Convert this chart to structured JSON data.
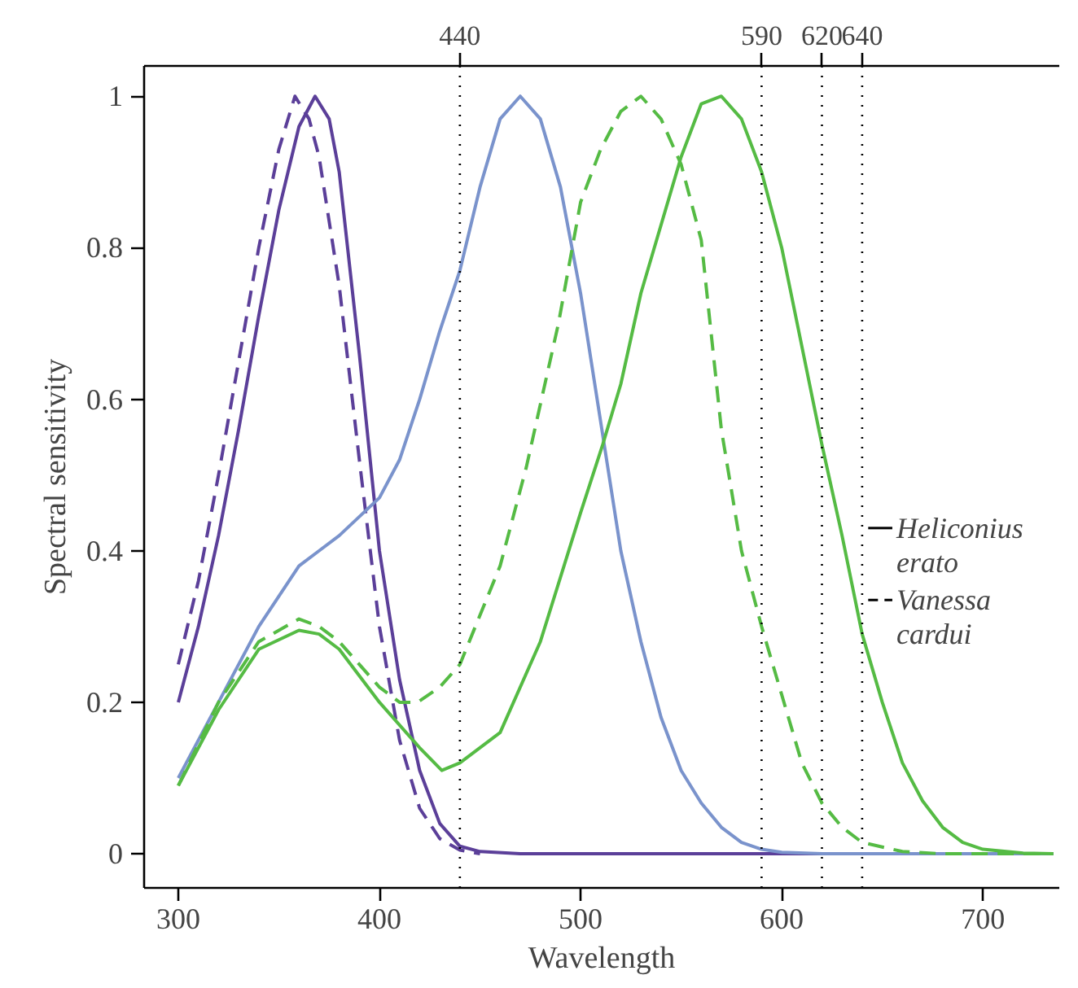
{
  "chart_data": {
    "type": "line",
    "xlabel": "Wavelength",
    "ylabel": "Spectral sensitivity",
    "xlim": [
      283,
      738
    ],
    "xticks": [
      300,
      400,
      500,
      600,
      700
    ],
    "ylim": [
      -0.045,
      1.04
    ],
    "yticks": [
      0,
      {
        "value": 0.2,
        "label": "0.2"
      },
      {
        "value": 0.4,
        "label": "0.4"
      },
      {
        "value": 0.6,
        "label": "0.6"
      },
      {
        "value": 0.8,
        "label": "0.8"
      },
      1
    ],
    "x2lim": [
      283,
      738
    ],
    "x2ticks": [
      440,
      590,
      620,
      640
    ],
    "ref_lines": [
      {
        "axis": "x",
        "value": 440,
        "line_style": "dotted"
      },
      {
        "axis": "x",
        "value": 590,
        "line_style": "dotted"
      },
      {
        "axis": "x",
        "value": 620,
        "line_style": "dotted"
      },
      {
        "axis": "x",
        "value": 640,
        "line_style": "dotted"
      }
    ],
    "grid": false,
    "marker": "none",
    "annotations": [
      "Heliconius erato",
      "Vanessa cardui"
    ],
    "series": [
      {
        "color": "#5b3f99",
        "line_style": "solid",
        "x": [
          300,
          310,
          320,
          330,
          340,
          350,
          360,
          368,
          375,
          380,
          390,
          400,
          410,
          420,
          430,
          440,
          450,
          470,
          735
        ],
        "values": [
          0.2,
          0.3,
          0.42,
          0.56,
          0.71,
          0.85,
          0.96,
          1.0,
          0.97,
          0.9,
          0.66,
          0.4,
          0.23,
          0.11,
          0.04,
          0.01,
          0.003,
          0,
          0
        ]
      },
      {
        "color": "#5b3f99",
        "line_style": "dashed",
        "x": [
          300,
          310,
          320,
          330,
          340,
          350,
          358,
          365,
          370,
          380,
          390,
          400,
          410,
          420,
          430,
          440,
          450
        ],
        "values": [
          0.25,
          0.36,
          0.5,
          0.65,
          0.8,
          0.93,
          1.0,
          0.97,
          0.92,
          0.75,
          0.52,
          0.3,
          0.15,
          0.06,
          0.02,
          0.005,
          0
        ]
      },
      {
        "color": "#7a93cc",
        "line_style": "solid",
        "x": [
          300,
          320,
          340,
          360,
          370,
          380,
          400,
          410,
          420,
          430,
          440,
          450,
          460,
          470,
          480,
          490,
          500,
          510,
          520,
          530,
          540,
          550,
          560,
          570,
          580,
          590,
          600,
          620,
          735
        ],
        "values": [
          0.1,
          0.2,
          0.3,
          0.38,
          0.4,
          0.42,
          0.47,
          0.52,
          0.6,
          0.69,
          0.77,
          0.88,
          0.97,
          1.0,
          0.97,
          0.88,
          0.74,
          0.57,
          0.4,
          0.28,
          0.18,
          0.11,
          0.067,
          0.035,
          0.015,
          0.006,
          0.002,
          0,
          0
        ]
      },
      {
        "color": "#55bb44",
        "line_style": "solid",
        "x": [
          300,
          320,
          340,
          360,
          370,
          380,
          400,
          420,
          431,
          440,
          460,
          480,
          500,
          511,
          520,
          530,
          550,
          560,
          570,
          580,
          590,
          600,
          610,
          620,
          630,
          640,
          650,
          660,
          670,
          680,
          690,
          700,
          720,
          735
        ],
        "values": [
          0.09,
          0.19,
          0.27,
          0.295,
          0.29,
          0.27,
          0.2,
          0.14,
          0.11,
          0.12,
          0.16,
          0.28,
          0.45,
          0.54,
          0.62,
          0.74,
          0.92,
          0.99,
          1.0,
          0.97,
          0.9,
          0.8,
          0.67,
          0.54,
          0.42,
          0.29,
          0.2,
          0.12,
          0.07,
          0.035,
          0.015,
          0.006,
          0.001,
          0
        ]
      },
      {
        "color": "#55bb44",
        "line_style": "dashed",
        "x": [
          300,
          320,
          340,
          360,
          370,
          380,
          390,
          400,
          410,
          419,
          430,
          440,
          460,
          473,
          489,
          500,
          510,
          520,
          530,
          540,
          550,
          560,
          570,
          580,
          590,
          600,
          610,
          620,
          630,
          640,
          660,
          680,
          735
        ],
        "values": [
          0.09,
          0.2,
          0.28,
          0.31,
          0.3,
          0.28,
          0.25,
          0.22,
          0.2,
          0.2,
          0.22,
          0.25,
          0.38,
          0.51,
          0.7,
          0.86,
          0.93,
          0.98,
          1.0,
          0.97,
          0.91,
          0.81,
          0.56,
          0.4,
          0.3,
          0.21,
          0.12,
          0.067,
          0.035,
          0.015,
          0.003,
          0,
          0
        ]
      }
    ]
  }
}
